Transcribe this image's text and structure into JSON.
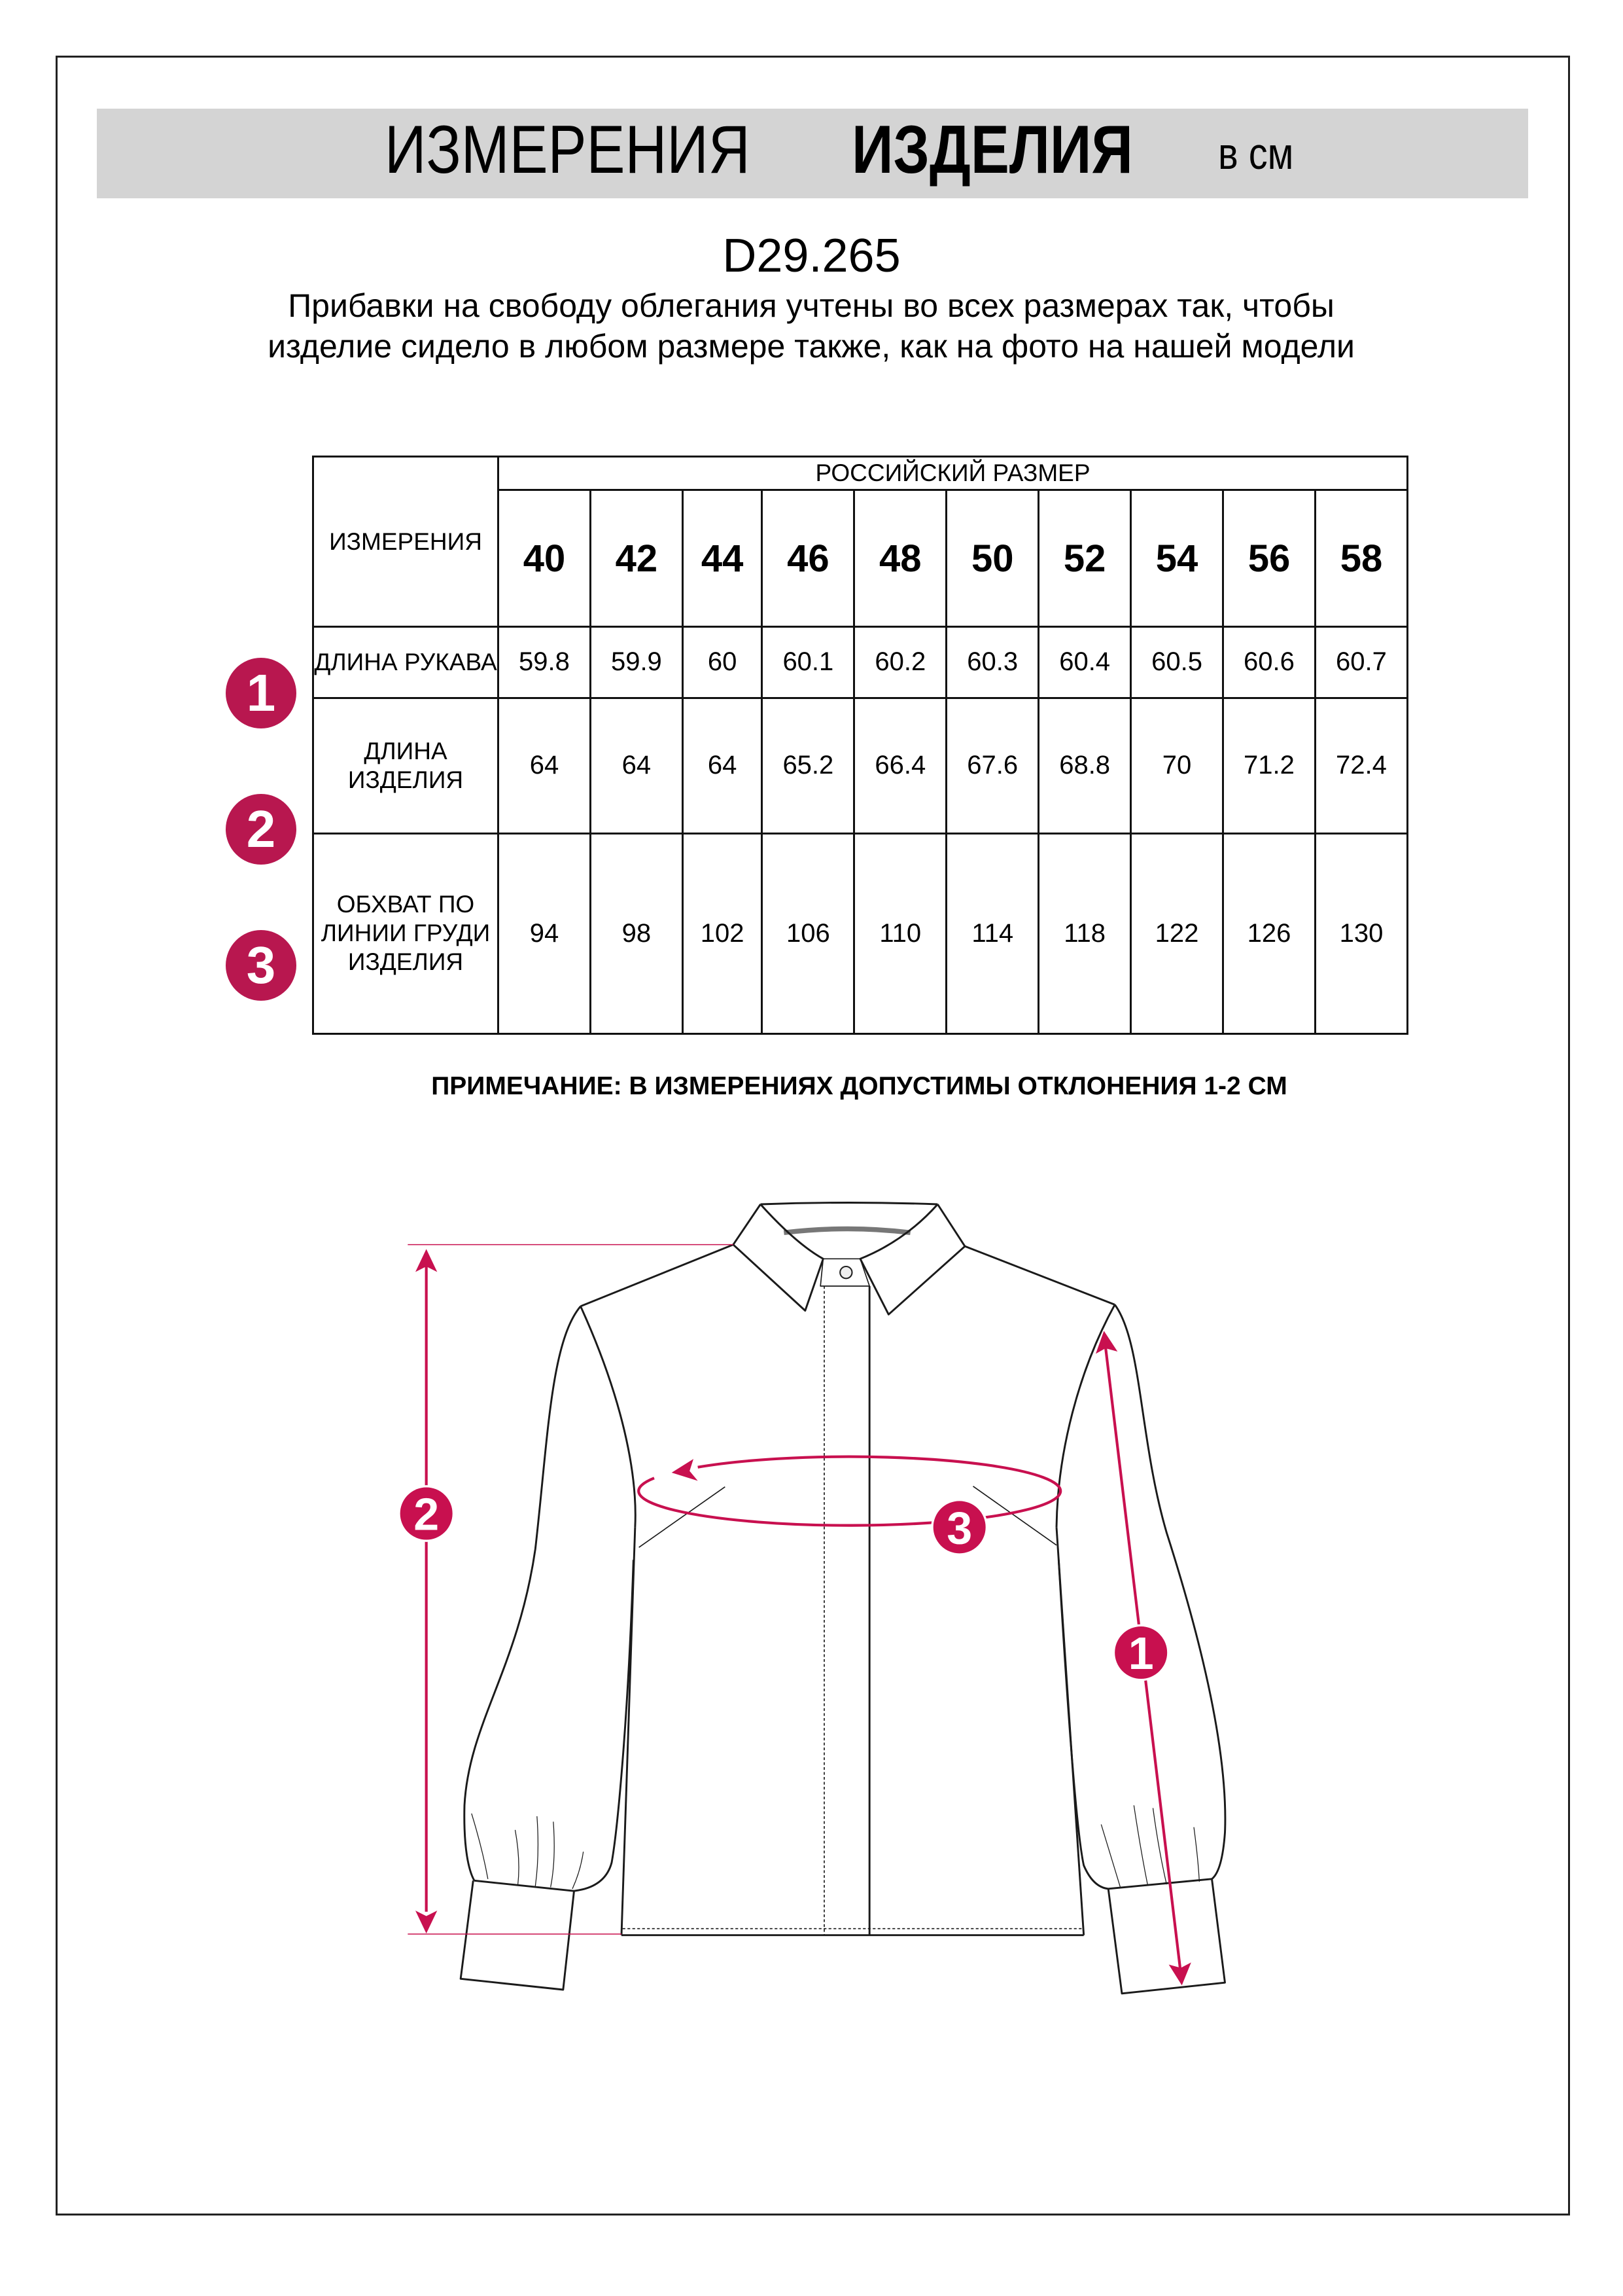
{
  "header": {
    "title_regular": "ИЗМЕРЕНИЯ",
    "title_bold": "ИЗДЕЛИЯ",
    "units": "в см"
  },
  "product_code": "D29.265",
  "description": "Прибавки на свободу облегания учтены во всех размерах так, чтобы изделие сидело в любом размере также, как на фото на нашей модели",
  "table": {
    "corner": "ИЗМЕРЕНИЯ",
    "group_header": "РОССИЙСКИЙ РАЗМЕР",
    "sizes": [
      "40",
      "42",
      "44",
      "46",
      "48",
      "50",
      "52",
      "54",
      "56",
      "58"
    ],
    "rows": [
      {
        "badge": "1",
        "label": "ДЛИНА РУКАВА",
        "values": [
          "59.8",
          "59.9",
          "60",
          "60.1",
          "60.2",
          "60.3",
          "60.4",
          "60.5",
          "60.6",
          "60.7"
        ]
      },
      {
        "badge": "2",
        "label": "ДЛИНА ИЗДЕЛИЯ",
        "values": [
          "64",
          "64",
          "64",
          "65.2",
          "66.4",
          "67.6",
          "68.8",
          "70",
          "71.2",
          "72.4"
        ]
      },
      {
        "badge": "3",
        "label": "ОБХВАТ ПО ЛИНИИ ГРУДИ ИЗДЕЛИЯ",
        "values": [
          "94",
          "98",
          "102",
          "106",
          "110",
          "114",
          "118",
          "122",
          "126",
          "130"
        ]
      }
    ]
  },
  "note": "ПРИМЕЧАНИЕ: В ИЗМЕРЕНИЯХ ДОПУСТИМЫ ОТКЛОНЕНИЯ 1-2 СМ",
  "diagram": {
    "marker_sleeve": "1",
    "marker_length": "2",
    "marker_chest": "3"
  },
  "colors": {
    "accent": "#b8174f",
    "band": "#d4d4d4"
  }
}
